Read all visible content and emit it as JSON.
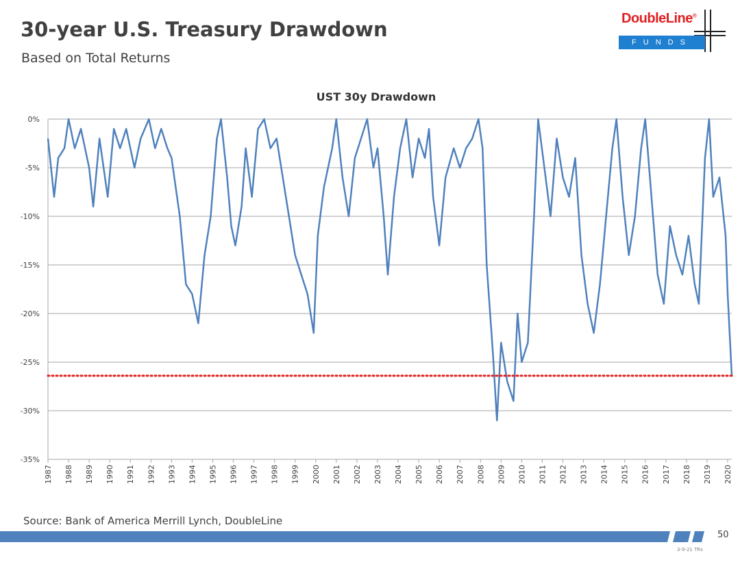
{
  "header": {
    "title": "30-year U.S. Treasury Drawdown",
    "subtitle": "Based on Total Returns"
  },
  "logo": {
    "name": "DoubleLine",
    "mark": "®",
    "tag": "FUNDS"
  },
  "chart_data": {
    "type": "line",
    "title": "UST 30y Drawdown",
    "color": "#4f81bd",
    "x": [
      1987.0,
      1987.3,
      1987.5,
      1987.8,
      1988.0,
      1988.3,
      1988.6,
      1989.0,
      1989.2,
      1989.5,
      1989.9,
      1990.2,
      1990.5,
      1990.8,
      1991.2,
      1991.5,
      1991.9,
      1992.2,
      1992.5,
      1992.8,
      1993.0,
      1993.4,
      1993.7,
      1994.0,
      1994.3,
      1994.6,
      1994.9,
      1995.2,
      1995.4,
      1995.7,
      1995.9,
      1996.1,
      1996.4,
      1996.6,
      1996.9,
      1997.2,
      1997.5,
      1997.8,
      1998.1,
      1998.4,
      1998.7,
      1999.0,
      1999.3,
      1999.6,
      1999.9,
      2000.1,
      2000.4,
      2000.8,
      2001.0,
      2001.3,
      2001.6,
      2001.9,
      2002.2,
      2002.5,
      2002.8,
      2003.0,
      2003.3,
      2003.5,
      2003.8,
      2004.1,
      2004.4,
      2004.7,
      2005.0,
      2005.3,
      2005.5,
      2005.7,
      2006.0,
      2006.3,
      2006.7,
      2007.0,
      2007.3,
      2007.6,
      2007.9,
      2008.1,
      2008.3,
      2008.6,
      2008.8,
      2009.0,
      2009.3,
      2009.6,
      2009.8,
      2010.0,
      2010.3,
      2010.6,
      2010.8,
      2011.1,
      2011.4,
      2011.7,
      2012.0,
      2012.3,
      2012.6,
      2012.9,
      2013.2,
      2013.5,
      2013.8,
      2014.1,
      2014.4,
      2014.6,
      2014.9,
      2015.2,
      2015.5,
      2015.8,
      2016.0,
      2016.3,
      2016.6,
      2016.9,
      2017.2,
      2017.5,
      2017.8,
      2018.1,
      2018.4,
      2018.6,
      2018.9,
      2019.1,
      2019.3,
      2019.6,
      2019.9,
      2020.0,
      2020.2
    ],
    "values": [
      -2,
      -8,
      -4,
      -3,
      0,
      -3,
      -1,
      -5,
      -9,
      -2,
      -8,
      -1,
      -3,
      -1,
      -5,
      -2,
      0,
      -3,
      -1,
      -3,
      -4,
      -10,
      -17,
      -18,
      -21,
      -14,
      -10,
      -2,
      0,
      -6,
      -11,
      -13,
      -9,
      -3,
      -8,
      -1,
      0,
      -3,
      -2,
      -6,
      -10,
      -14,
      -16,
      -18,
      -22,
      -12,
      -7,
      -3,
      0,
      -6,
      -10,
      -4,
      -2,
      0,
      -5,
      -3,
      -10,
      -16,
      -8,
      -3,
      0,
      -6,
      -2,
      -4,
      -1,
      -8,
      -13,
      -6,
      -3,
      -5,
      -3,
      -2,
      0,
      -3,
      -15,
      -24,
      -31,
      -23,
      -27,
      -29,
      -20,
      -25,
      -23,
      -10,
      0,
      -5,
      -10,
      -2,
      -6,
      -8,
      -4,
      -14,
      -19,
      -22,
      -17,
      -10,
      -3,
      0,
      -8,
      -14,
      -10,
      -3,
      0,
      -8,
      -16,
      -19,
      -11,
      -14,
      -16,
      -12,
      -17,
      -19,
      -4,
      0,
      -8,
      -6,
      -12,
      -18,
      -26.4
    ],
    "xlim": [
      1987,
      2020.2
    ],
    "xticks": [
      1987,
      1988,
      1989,
      1990,
      1991,
      1992,
      1993,
      1994,
      1995,
      1996,
      1997,
      1998,
      1999,
      2000,
      2001,
      2002,
      2003,
      2004,
      2005,
      2006,
      2007,
      2008,
      2009,
      2010,
      2011,
      2012,
      2013,
      2014,
      2015,
      2016,
      2017,
      2018,
      2019,
      2020
    ],
    "ylim": [
      -35,
      0
    ],
    "yticks": [
      {
        "value": 0,
        "label": "0%"
      },
      {
        "value": -5,
        "label": "-5%"
      },
      {
        "value": -10,
        "label": "-10%"
      },
      {
        "value": -15,
        "label": "-15%"
      },
      {
        "value": -20,
        "label": "-20%"
      },
      {
        "value": -25,
        "label": "-25%"
      },
      {
        "value": -30,
        "label": "-30%"
      },
      {
        "value": -35,
        "label": "-35%"
      }
    ],
    "grid": true,
    "reference_line": {
      "value": -26.4,
      "color": "#e02020"
    }
  },
  "footer": {
    "source": "Source: Bank of America Merrill Lynch, DoubleLine",
    "page": "50",
    "stamp": "3-9-21 TRs"
  }
}
